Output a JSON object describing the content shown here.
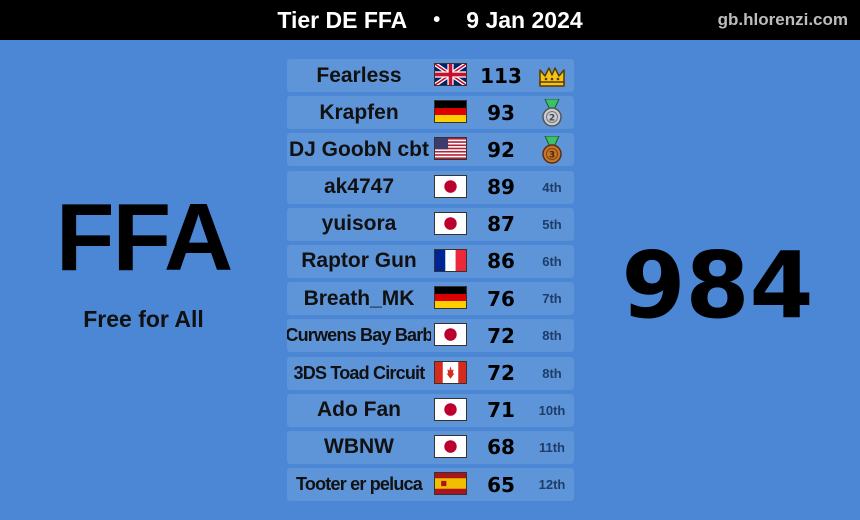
{
  "header": {
    "title": "Tier DE FFA",
    "separator": "•",
    "date": "9 Jan 2024",
    "site": "gb.hlorenzi.com"
  },
  "left": {
    "mode": "FFA",
    "mode_full": "Free for All"
  },
  "right": {
    "total": "984"
  },
  "rows": [
    {
      "name": "Fearless",
      "flag": "gb-flag-icon",
      "score": "113",
      "rank": "",
      "award": "crown-icon"
    },
    {
      "name": "Krapfen",
      "flag": "de-flag-icon",
      "score": "93",
      "rank": "",
      "award": "silver-medal-icon"
    },
    {
      "name": "DJ GoobN cbt",
      "flag": "us-flag-icon",
      "score": "92",
      "rank": "",
      "award": "bronze-medal-icon"
    },
    {
      "name": "ak4747",
      "flag": "jp-flag-icon",
      "score": "89",
      "rank": "4th",
      "award": ""
    },
    {
      "name": "yuisora",
      "flag": "jp-flag-icon",
      "score": "87",
      "rank": "5th",
      "award": ""
    },
    {
      "name": "Raptor Gun",
      "flag": "fr-flag-icon",
      "score": "86",
      "rank": "6th",
      "award": ""
    },
    {
      "name": "Breath_MK",
      "flag": "de-flag-icon",
      "score": "76",
      "rank": "7th",
      "award": ""
    },
    {
      "name": "Curwens Bay Barb",
      "flag": "jp-flag-icon",
      "score": "72",
      "rank": "8th",
      "award": ""
    },
    {
      "name": "3DS Toad Circuit",
      "flag": "ca-flag-icon",
      "score": "72",
      "rank": "8th",
      "award": ""
    },
    {
      "name": "Ado Fan",
      "flag": "jp-flag-icon",
      "score": "71",
      "rank": "10th",
      "award": ""
    },
    {
      "name": "WBNW",
      "flag": "jp-flag-icon",
      "score": "68",
      "rank": "11th",
      "award": ""
    },
    {
      "name": "Tooter er peluca",
      "flag": "es-flag-icon",
      "score": "65",
      "rank": "12th",
      "award": ""
    }
  ],
  "colors": {
    "background": "#4b87d4",
    "row": "#5e94d8",
    "header": "#000000",
    "rank_text": "#1d3d66",
    "crown": "#f2c418",
    "silver": "#c8ccd2",
    "bronze": "#c8742c",
    "ribbon": "#3cc06a"
  }
}
